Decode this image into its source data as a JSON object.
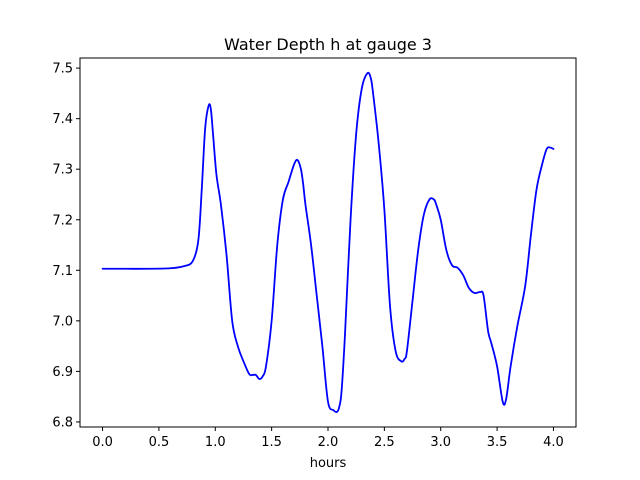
{
  "chart_data": {
    "type": "line",
    "title": "Water Depth h at gauge 3",
    "xlabel": "hours",
    "ylabel": "",
    "xlim": [
      -0.2,
      4.2
    ],
    "ylim": [
      6.79,
      7.52
    ],
    "xticks": [
      0.0,
      0.5,
      1.0,
      1.5,
      2.0,
      2.5,
      3.0,
      3.5,
      4.0
    ],
    "xtick_labels": [
      "0.0",
      "0.5",
      "1.0",
      "1.5",
      "2.0",
      "2.5",
      "3.0",
      "3.5",
      "4.0"
    ],
    "yticks": [
      6.8,
      6.9,
      7.0,
      7.1,
      7.2,
      7.3,
      7.4,
      7.5
    ],
    "ytick_labels": [
      "6.8",
      "6.9",
      "7.0",
      "7.1",
      "7.2",
      "7.3",
      "7.4",
      "7.5"
    ],
    "grid": false,
    "line_color": "#0000ff",
    "series": [
      {
        "x": [
          0.0,
          0.2,
          0.4,
          0.6,
          0.72,
          0.8,
          0.85,
          0.88,
          0.91,
          0.94,
          0.96,
          0.98,
          1.01,
          1.05,
          1.1,
          1.15,
          1.2,
          1.25,
          1.3,
          1.33,
          1.36,
          1.39,
          1.42,
          1.45,
          1.5,
          1.55,
          1.6,
          1.65,
          1.7,
          1.73,
          1.76,
          1.78,
          1.8,
          1.85,
          1.9,
          1.95,
          2.0,
          2.05,
          2.08,
          2.1,
          2.12,
          2.15,
          2.2,
          2.25,
          2.3,
          2.35,
          2.38,
          2.4,
          2.45,
          2.5,
          2.55,
          2.6,
          2.65,
          2.68,
          2.7,
          2.75,
          2.8,
          2.85,
          2.9,
          2.94,
          2.96,
          3.0,
          3.05,
          3.1,
          3.15,
          3.2,
          3.25,
          3.3,
          3.35,
          3.38,
          3.42,
          3.45,
          3.5,
          3.55,
          3.58,
          3.62,
          3.68,
          3.75,
          3.8,
          3.85,
          3.9,
          3.94,
          3.97,
          4.0
        ],
        "y": [
          7.103,
          7.103,
          7.103,
          7.104,
          7.108,
          7.118,
          7.16,
          7.26,
          7.38,
          7.425,
          7.42,
          7.37,
          7.29,
          7.23,
          7.13,
          7.0,
          6.95,
          6.92,
          6.895,
          6.893,
          6.893,
          6.885,
          6.89,
          6.91,
          7.0,
          7.15,
          7.24,
          7.275,
          7.31,
          7.318,
          7.3,
          7.27,
          7.23,
          7.15,
          7.05,
          6.95,
          6.84,
          6.823,
          6.82,
          6.83,
          6.86,
          6.97,
          7.2,
          7.37,
          7.46,
          7.49,
          7.48,
          7.45,
          7.35,
          7.22,
          7.03,
          6.94,
          6.92,
          6.925,
          6.94,
          7.04,
          7.14,
          7.21,
          7.24,
          7.24,
          7.23,
          7.2,
          7.14,
          7.11,
          7.105,
          7.09,
          7.065,
          7.055,
          7.057,
          7.05,
          6.98,
          6.955,
          6.91,
          6.84,
          6.845,
          6.91,
          6.99,
          7.07,
          7.17,
          7.26,
          7.31,
          7.34,
          7.343,
          7.34
        ]
      }
    ]
  }
}
